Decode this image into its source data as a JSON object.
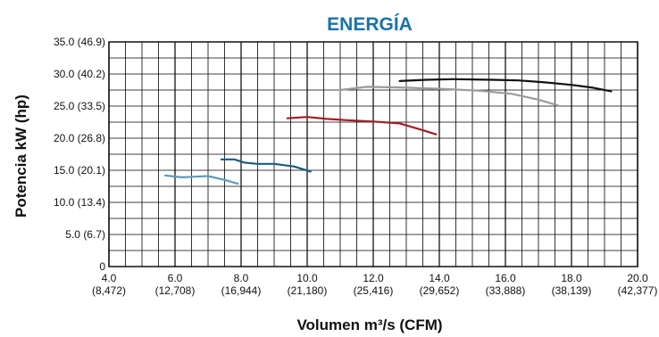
{
  "chart_data": {
    "type": "line",
    "title": "ENERGÍA",
    "xlabel": "Volumen m³/s (CFM)",
    "ylabel": "Potencia kW (hp)",
    "xlim": [
      4.0,
      20.0
    ],
    "ylim": [
      0,
      35.0
    ],
    "grid": true,
    "x_ticks": [
      {
        "value": 4.0,
        "label": "4.0",
        "sublabel": "(8,472)"
      },
      {
        "value": 6.0,
        "label": "6.0",
        "sublabel": "(12,708)"
      },
      {
        "value": 8.0,
        "label": "8.0",
        "sublabel": "(16,944)"
      },
      {
        "value": 10.0,
        "label": "10.0",
        "sublabel": "(21,180)"
      },
      {
        "value": 12.0,
        "label": "12.0",
        "sublabel": "(25,416)"
      },
      {
        "value": 14.0,
        "label": "14.0",
        "sublabel": "(29,652)"
      },
      {
        "value": 16.0,
        "label": "16.0",
        "sublabel": "(33,888)"
      },
      {
        "value": 18.0,
        "label": "18.0",
        "sublabel": "(38,139)"
      },
      {
        "value": 20.0,
        "label": "20.0",
        "sublabel": "(42,377)"
      }
    ],
    "y_ticks": [
      {
        "value": 0,
        "label": "0"
      },
      {
        "value": 5.0,
        "label": "5.0 (6.7)"
      },
      {
        "value": 10.0,
        "label": "10.0 (13.4)"
      },
      {
        "value": 15.0,
        "label": "15.0 (20.1)"
      },
      {
        "value": 20.0,
        "label": "20.0 (26.8)"
      },
      {
        "value": 25.0,
        "label": "25.0 (33.5)"
      },
      {
        "value": 30.0,
        "label": "30.0 (40.2)"
      },
      {
        "value": 35.0,
        "label": "35.0 (46.9)"
      }
    ],
    "series": [
      {
        "color": "#5b9bbf",
        "x": [
          5.7,
          6.2,
          6.6,
          7.0,
          7.5,
          7.9
        ],
        "y": [
          14.2,
          13.9,
          14.0,
          14.1,
          13.5,
          12.9
        ]
      },
      {
        "color": "#1c5c80",
        "x": [
          7.4,
          7.8,
          8.1,
          8.5,
          9.0,
          9.6,
          10.1
        ],
        "y": [
          16.7,
          16.7,
          16.2,
          16.0,
          16.0,
          15.6,
          14.8
        ]
      },
      {
        "color": "#a31d24",
        "x": [
          9.4,
          10.0,
          10.6,
          11.2,
          12.0,
          12.8,
          13.4,
          13.9
        ],
        "y": [
          23.1,
          23.3,
          23.0,
          22.8,
          22.6,
          22.3,
          21.4,
          20.6
        ]
      },
      {
        "color": "#9a9a9a",
        "x": [
          11.0,
          11.8,
          12.8,
          14.0,
          15.2,
          16.2,
          17.0,
          17.6
        ],
        "y": [
          27.5,
          28.0,
          27.9,
          27.7,
          27.4,
          26.9,
          26.0,
          25.1
        ]
      },
      {
        "color": "#111111",
        "x": [
          12.8,
          13.6,
          14.4,
          15.6,
          16.4,
          17.2,
          18.0,
          18.6,
          19.2
        ],
        "y": [
          28.9,
          29.1,
          29.2,
          29.1,
          29.0,
          28.7,
          28.3,
          27.9,
          27.3
        ]
      }
    ]
  }
}
